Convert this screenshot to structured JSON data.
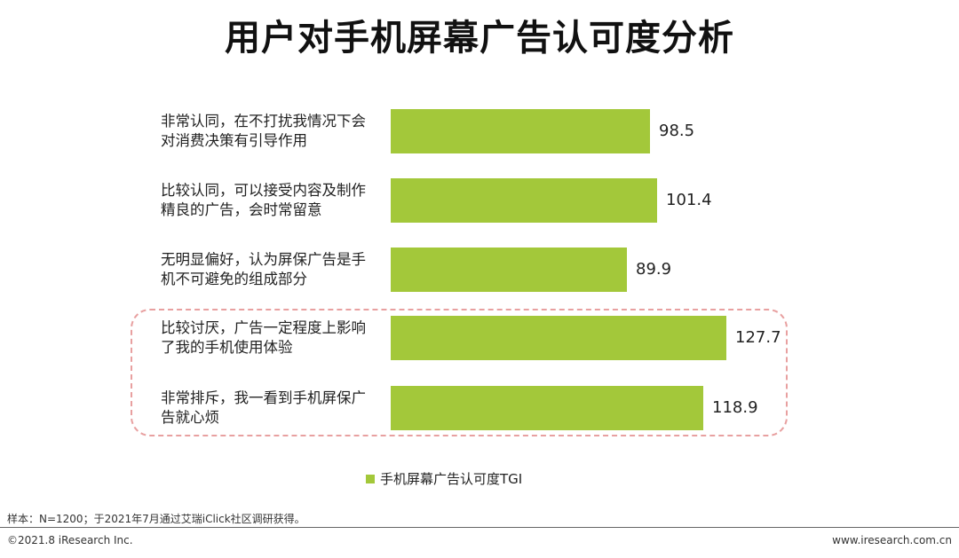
{
  "page": {
    "title": "用户对手机屏幕广告认可度分析",
    "note": "样本：N=1200；于2021年7月通过艾瑞iClick社区调研获得。",
    "copyright": "©2021.8 iResearch Inc.",
    "site": "www.iresearch.com.cn"
  },
  "chart_data": {
    "type": "bar",
    "orientation": "horizontal",
    "title": "用户对手机屏幕广告认可度分析",
    "categories": [
      "非常认同，在不打扰我情况下会\n对消费决策有引导作用",
      "比较认同，可以接受内容及制作\n精良的广告，会时常留意",
      "无明显偏好，认为屏保广告是手\n机不可避免的组成部分",
      "比较讨厌，广告一定程度上影响\n了我的手机使用体验",
      "非常排斥，我一看到手机屏保广\n告就心烦"
    ],
    "series": [
      {
        "name": "手机屏幕广告认可度TGI",
        "values": [
          98.5,
          101.4,
          89.9,
          127.7,
          118.9
        ],
        "color": "#a3c83a"
      }
    ],
    "value_labels": [
      "98.5",
      "101.4",
      "89.9",
      "127.7",
      "118.9"
    ],
    "highlighted_categories": [
      3,
      4
    ],
    "highlight_color": "#e8a0a0",
    "grid": false,
    "legend_position": "bottom"
  }
}
